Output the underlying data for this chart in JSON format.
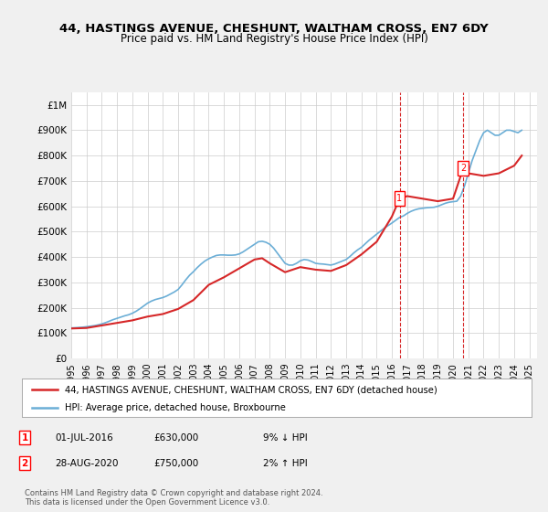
{
  "title": "44, HASTINGS AVENUE, CHESHUNT, WALTHAM CROSS, EN7 6DY",
  "subtitle": "Price paid vs. HM Land Registry's House Price Index (HPI)",
  "ylabel_ticks": [
    "£0",
    "£100K",
    "£200K",
    "£300K",
    "£400K",
    "£500K",
    "£600K",
    "£700K",
    "£800K",
    "£900K",
    "£1M"
  ],
  "ytick_values": [
    0,
    100000,
    200000,
    300000,
    400000,
    500000,
    600000,
    700000,
    800000,
    900000,
    1000000
  ],
  "ylim": [
    0,
    1050000
  ],
  "xlim_start": 1995.0,
  "xlim_end": 2025.5,
  "hpi_color": "#6baed6",
  "price_color": "#d62728",
  "dashed_line_color": "#d62728",
  "background_color": "#f0f0f0",
  "plot_bg_color": "#ffffff",
  "grid_color": "#cccccc",
  "legend_label_red": "44, HASTINGS AVENUE, CHESHUNT, WALTHAM CROSS, EN7 6DY (detached house)",
  "legend_label_blue": "HPI: Average price, detached house, Broxbourne",
  "sale1_date": "01-JUL-2016",
  "sale1_price": "£630,000",
  "sale1_hpi": "9% ↓ HPI",
  "sale1_x": 2016.5,
  "sale1_y": 630000,
  "sale2_date": "28-AUG-2020",
  "sale2_price": "£750,000",
  "sale2_hpi": "2% ↑ HPI",
  "sale2_x": 2020.67,
  "sale2_y": 750000,
  "footer": "Contains HM Land Registry data © Crown copyright and database right 2024.\nThis data is licensed under the Open Government Licence v3.0.",
  "hpi_data_x": [
    1995.0,
    1995.25,
    1995.5,
    1995.75,
    1996.0,
    1996.25,
    1996.5,
    1996.75,
    1997.0,
    1997.25,
    1997.5,
    1997.75,
    1998.0,
    1998.25,
    1998.5,
    1998.75,
    1999.0,
    1999.25,
    1999.5,
    1999.75,
    2000.0,
    2000.25,
    2000.5,
    2000.75,
    2001.0,
    2001.25,
    2001.5,
    2001.75,
    2002.0,
    2002.25,
    2002.5,
    2002.75,
    2003.0,
    2003.25,
    2003.5,
    2003.75,
    2004.0,
    2004.25,
    2004.5,
    2004.75,
    2005.0,
    2005.25,
    2005.5,
    2005.75,
    2006.0,
    2006.25,
    2006.5,
    2006.75,
    2007.0,
    2007.25,
    2007.5,
    2007.75,
    2008.0,
    2008.25,
    2008.5,
    2008.75,
    2009.0,
    2009.25,
    2009.5,
    2009.75,
    2010.0,
    2010.25,
    2010.5,
    2010.75,
    2011.0,
    2011.25,
    2011.5,
    2011.75,
    2012.0,
    2012.25,
    2012.5,
    2012.75,
    2013.0,
    2013.25,
    2013.5,
    2013.75,
    2014.0,
    2014.25,
    2014.5,
    2014.75,
    2015.0,
    2015.25,
    2015.5,
    2015.75,
    2016.0,
    2016.25,
    2016.5,
    2016.75,
    2017.0,
    2017.25,
    2017.5,
    2017.75,
    2018.0,
    2018.25,
    2018.5,
    2018.75,
    2019.0,
    2019.25,
    2019.5,
    2019.75,
    2020.0,
    2020.25,
    2020.5,
    2020.75,
    2021.0,
    2021.25,
    2021.5,
    2021.75,
    2022.0,
    2022.25,
    2022.5,
    2022.75,
    2023.0,
    2023.25,
    2023.5,
    2023.75,
    2024.0,
    2024.25,
    2024.5
  ],
  "hpi_data_y": [
    120000,
    121000,
    122000,
    123000,
    125000,
    127000,
    129000,
    132000,
    136000,
    141000,
    147000,
    153000,
    158000,
    163000,
    168000,
    172000,
    178000,
    186000,
    196000,
    207000,
    218000,
    226000,
    232000,
    236000,
    240000,
    246000,
    254000,
    262000,
    272000,
    290000,
    310000,
    328000,
    342000,
    358000,
    372000,
    384000,
    393000,
    400000,
    406000,
    408000,
    408000,
    407000,
    407000,
    408000,
    412000,
    420000,
    430000,
    440000,
    450000,
    460000,
    462000,
    458000,
    450000,
    435000,
    415000,
    395000,
    375000,
    368000,
    368000,
    375000,
    385000,
    390000,
    388000,
    382000,
    375000,
    373000,
    372000,
    370000,
    368000,
    372000,
    378000,
    384000,
    390000,
    402000,
    416000,
    428000,
    438000,
    452000,
    466000,
    478000,
    490000,
    502000,
    514000,
    524000,
    534000,
    545000,
    556000,
    562000,
    572000,
    580000,
    586000,
    590000,
    592000,
    594000,
    595000,
    596000,
    600000,
    606000,
    612000,
    616000,
    618000,
    620000,
    640000,
    680000,
    730000,
    780000,
    820000,
    860000,
    890000,
    900000,
    890000,
    880000,
    880000,
    890000,
    900000,
    900000,
    895000,
    890000,
    900000
  ],
  "price_data_x": [
    1995.0,
    1995.5,
    1996.0,
    1997.0,
    1998.0,
    1999.0,
    2000.0,
    2001.0,
    2002.0,
    2003.0,
    2004.0,
    2005.0,
    2006.0,
    2007.0,
    2007.5,
    2008.0,
    2009.0,
    2010.0,
    2011.0,
    2012.0,
    2013.0,
    2014.0,
    2015.0,
    2016.0,
    2016.5,
    2017.0,
    2018.0,
    2019.0,
    2020.0,
    2020.67,
    2021.0,
    2022.0,
    2023.0,
    2024.0,
    2024.5
  ],
  "price_data_y": [
    118000,
    119000,
    120000,
    130000,
    140000,
    150000,
    165000,
    175000,
    195000,
    230000,
    290000,
    320000,
    355000,
    390000,
    395000,
    375000,
    340000,
    360000,
    350000,
    345000,
    368000,
    410000,
    460000,
    560000,
    630000,
    640000,
    630000,
    620000,
    630000,
    750000,
    730000,
    720000,
    730000,
    760000,
    800000
  ]
}
